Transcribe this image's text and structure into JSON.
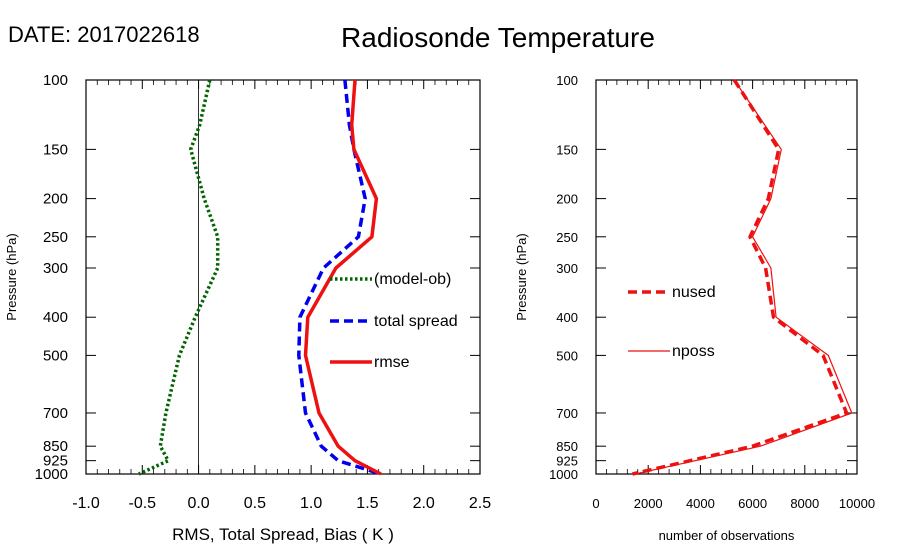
{
  "header": {
    "date": "DATE: 2017022618",
    "title": "Radiosonde Temperature"
  },
  "chart_data": [
    {
      "type": "line",
      "xlabel": "RMS, Total Spread, Bias ( K )",
      "ylabel": "Pressure (hPa)",
      "xlim": [
        -1.0,
        2.5
      ],
      "ylim": [
        1000,
        100
      ],
      "yscale": "log",
      "xticks": [
        "-1.0",
        "-0.5",
        "0.0",
        "0.5",
        "1.0",
        "1.5",
        "2.0",
        "2.5"
      ],
      "yticks": [
        "100",
        "150",
        "200",
        "250",
        "300",
        "400",
        "500",
        "700",
        "850",
        "925",
        "1000"
      ],
      "zero_line": true,
      "legend_position": "center-right",
      "series": [
        {
          "name": "(model-ob)",
          "color": "#006400",
          "dash": "dotted",
          "x": [
            0.1,
            0.01,
            -0.07,
            0.05,
            0.17,
            0.17,
            -0.03,
            -0.17,
            -0.29,
            -0.34,
            -0.27,
            -0.53
          ],
          "y": [
            100,
            130,
            150,
            200,
            250,
            300,
            400,
            500,
            700,
            850,
            925,
            1000
          ]
        },
        {
          "name": "total spread",
          "color": "#0000ee",
          "dash": "dashed",
          "x": [
            1.3,
            1.34,
            1.38,
            1.48,
            1.42,
            1.11,
            0.9,
            0.89,
            0.95,
            1.09,
            1.24,
            1.62
          ],
          "y": [
            100,
            130,
            150,
            200,
            250,
            300,
            400,
            500,
            700,
            850,
            925,
            1000
          ]
        },
        {
          "name": "rmse",
          "color": "#ee1111",
          "dash": "solid",
          "x": [
            1.39,
            1.36,
            1.38,
            1.58,
            1.54,
            1.22,
            0.97,
            0.95,
            1.07,
            1.24,
            1.39,
            1.62
          ],
          "y": [
            100,
            130,
            150,
            200,
            250,
            300,
            400,
            500,
            700,
            850,
            925,
            1000
          ]
        }
      ]
    },
    {
      "type": "line",
      "xlabel": "number of observations",
      "ylabel": "Pressure (hPa)",
      "xlim": [
        0,
        10000
      ],
      "ylim": [
        1000,
        100
      ],
      "yscale": "log",
      "xticks": [
        "0",
        "2000",
        "4000",
        "6000",
        "8000",
        "10000"
      ],
      "yticks": [
        "100",
        "150",
        "200",
        "250",
        "300",
        "400",
        "500",
        "700",
        "850",
        "925",
        "1000"
      ],
      "legend_position": "center-left",
      "series": [
        {
          "name": "nused",
          "color": "#ee1111",
          "dash": "dashed",
          "x": [
            5300,
            7000,
            6600,
            5900,
            6500,
            6800,
            8700,
            9600,
            6000,
            3600,
            1400
          ],
          "y": [
            100,
            150,
            200,
            250,
            300,
            400,
            500,
            700,
            850,
            925,
            1000
          ]
        },
        {
          "name": "nposs",
          "color": "#ee1111",
          "dash": "solid",
          "x": [
            5300,
            7100,
            6700,
            6000,
            6700,
            6900,
            8900,
            9800,
            6300,
            3800,
            1500
          ],
          "y": [
            100,
            150,
            200,
            250,
            300,
            400,
            500,
            700,
            850,
            925,
            1000
          ]
        }
      ]
    }
  ]
}
